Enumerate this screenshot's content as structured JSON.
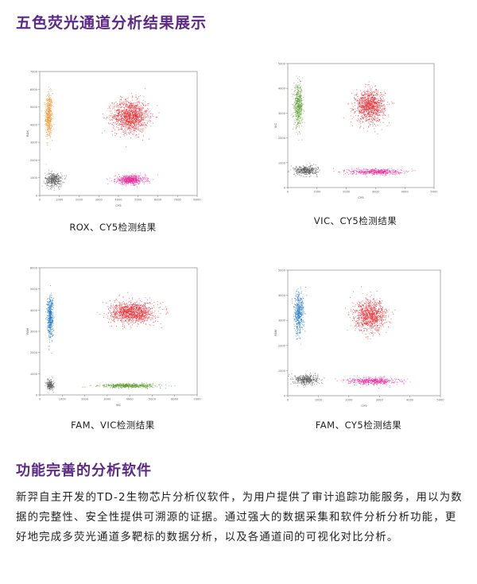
{
  "section1": {
    "title": "五色荧光通道分析结果展示"
  },
  "section2": {
    "title": "功能完善的分析软件",
    "paragraph": "新羿自主开发的TD-2生物芯片分析仪软件，为用户提供了审计追踪功能服务，用以为数据的完整性、安全性提供可溯源的证据。通过强大的数据采集和软件分析分析功能，更好地完成多荧光通道多靶标的数据分析，以及各通道间的可视化对比分析。"
  },
  "colors": {
    "heading": "#5b2a86",
    "red": "#e8232a",
    "orange": "#f0922b",
    "green": "#5a9a2a",
    "blue": "#1f78c8",
    "pink": "#e8279a",
    "gray": "#5a5a5a"
  },
  "chart_data": [
    {
      "type": "scatter",
      "caption": "ROX、CY5检测结果",
      "xlabel": "CY5",
      "ylabel": "ROX",
      "xlim": [
        0,
        8000
      ],
      "ylim": [
        0,
        7000
      ],
      "xticks": [
        "0",
        "1000",
        "2000",
        "3000",
        "4000",
        "5000",
        "6000",
        "7000",
        "8000"
      ],
      "yticks": [
        "0",
        "1000",
        "2000",
        "3000",
        "4000",
        "5000",
        "6000",
        "7000"
      ],
      "clusters": [
        {
          "color": "orange",
          "cx": 450,
          "cy": 4500,
          "sx": 90,
          "sy": 650,
          "n": 500
        },
        {
          "color": "red",
          "cx": 4600,
          "cy": 4500,
          "sx": 450,
          "sy": 450,
          "n": 1300
        },
        {
          "color": "gray",
          "cx": 700,
          "cy": 900,
          "sx": 220,
          "sy": 200,
          "n": 400
        },
        {
          "color": "pink",
          "cx": 4600,
          "cy": 900,
          "sx": 380,
          "sy": 130,
          "n": 600
        }
      ]
    },
    {
      "type": "scatter",
      "caption": "VIC、CY5检测结果",
      "xlabel": "CY5",
      "ylabel": "VIC",
      "xlim": [
        0,
        5000
      ],
      "ylim": [
        0,
        5000
      ],
      "xticks": [
        "0",
        "1000",
        "2000",
        "3000",
        "4000",
        "5000"
      ],
      "yticks": [
        "0",
        "1000",
        "2000",
        "3000",
        "4000",
        "5000"
      ],
      "clusters": [
        {
          "color": "green",
          "cx": 350,
          "cy": 3300,
          "sx": 75,
          "sy": 400,
          "n": 500
        },
        {
          "color": "red",
          "cx": 2800,
          "cy": 3300,
          "sx": 250,
          "sy": 320,
          "n": 1100
        },
        {
          "color": "gray",
          "cx": 600,
          "cy": 700,
          "sx": 200,
          "sy": 90,
          "n": 400
        },
        {
          "color": "pink",
          "cx": 3000,
          "cy": 650,
          "sx": 450,
          "sy": 60,
          "n": 500
        }
      ]
    },
    {
      "type": "scatter",
      "caption": "FAM、VIC检测结果",
      "xlabel": "VIC",
      "ylabel": "FAM",
      "xlim": [
        0,
        7000
      ],
      "ylim": [
        0,
        6000
      ],
      "xticks": [
        "0",
        "1000",
        "2000",
        "3000",
        "4000",
        "5000",
        "6000",
        "7000"
      ],
      "yticks": [
        "0",
        "1000",
        "2000",
        "3000",
        "4000",
        "5000",
        "6000"
      ],
      "clusters": [
        {
          "color": "blue",
          "cx": 450,
          "cy": 3700,
          "sx": 70,
          "sy": 500,
          "n": 500
        },
        {
          "color": "red",
          "cx": 4100,
          "cy": 3900,
          "sx": 480,
          "sy": 250,
          "n": 1200
        },
        {
          "color": "gray",
          "cx": 450,
          "cy": 500,
          "sx": 80,
          "sy": 120,
          "n": 200
        },
        {
          "color": "green",
          "cx": 4000,
          "cy": 450,
          "sx": 650,
          "sy": 50,
          "n": 500
        }
      ]
    },
    {
      "type": "scatter",
      "caption": "FAM、CY5检测结果",
      "xlabel": "CY5",
      "ylabel": "FAM",
      "xlim": [
        0,
        5000
      ],
      "ylim": [
        0,
        5000
      ],
      "xticks": [
        "0",
        "1000",
        "2000",
        "3000",
        "4000",
        "5000"
      ],
      "yticks": [
        "0",
        "1000",
        "2000",
        "3000",
        "4000",
        "5000"
      ],
      "clusters": [
        {
          "color": "blue",
          "cx": 350,
          "cy": 3300,
          "sx": 80,
          "sy": 420,
          "n": 500
        },
        {
          "color": "red",
          "cx": 2700,
          "cy": 3200,
          "sx": 260,
          "sy": 300,
          "n": 1000
        },
        {
          "color": "gray",
          "cx": 600,
          "cy": 650,
          "sx": 200,
          "sy": 100,
          "n": 400
        },
        {
          "color": "pink",
          "cx": 2800,
          "cy": 600,
          "sx": 400,
          "sy": 70,
          "n": 500
        }
      ]
    }
  ]
}
